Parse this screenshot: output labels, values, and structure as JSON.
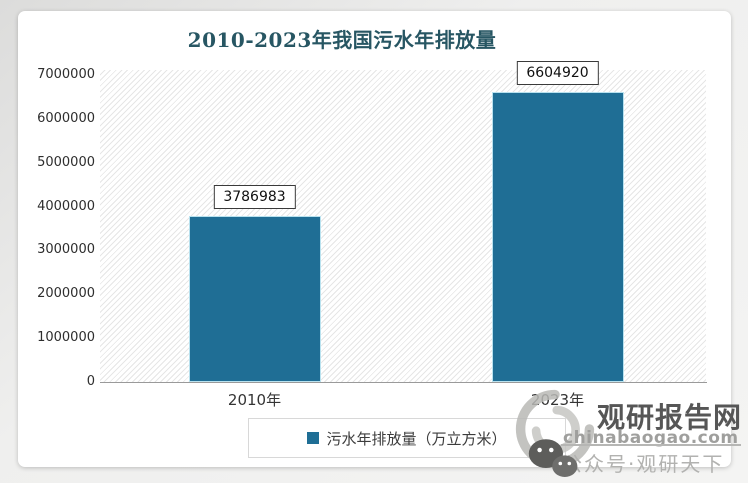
{
  "title": "2010-2023年我国污水年排放量",
  "chart_data": {
    "type": "bar",
    "title": "2010-2023年我国污水年排放量",
    "categories": [
      "2010年",
      "2023年"
    ],
    "values": [
      3786983,
      6604920
    ],
    "data_labels": [
      "3786983",
      "6604920"
    ],
    "series_name": "污水年排放量（万立方米）",
    "xlabel": "",
    "ylabel": "",
    "ylim": [
      0,
      7000000
    ],
    "yticks": [
      0,
      1000000,
      2000000,
      3000000,
      4000000,
      5000000,
      6000000,
      7000000
    ],
    "grid": false,
    "legend_position": "bottom",
    "bar_color": "#1F6E95",
    "plot_background": "diagonal-hatch"
  },
  "legend": {
    "marker_color": "#1F6E95",
    "label": "污水年排放量（万立方米）"
  },
  "watermark": {
    "site_name": "观研报告网",
    "site_url": "chinabaogao.com",
    "account": "公众号·观研天下",
    "icons": [
      "swirl-logo-icon",
      "wechat-icon"
    ]
  },
  "colors": {
    "bar": "#1F6E95",
    "title_text": "#275663",
    "axis_line": "#9A9A9A"
  }
}
